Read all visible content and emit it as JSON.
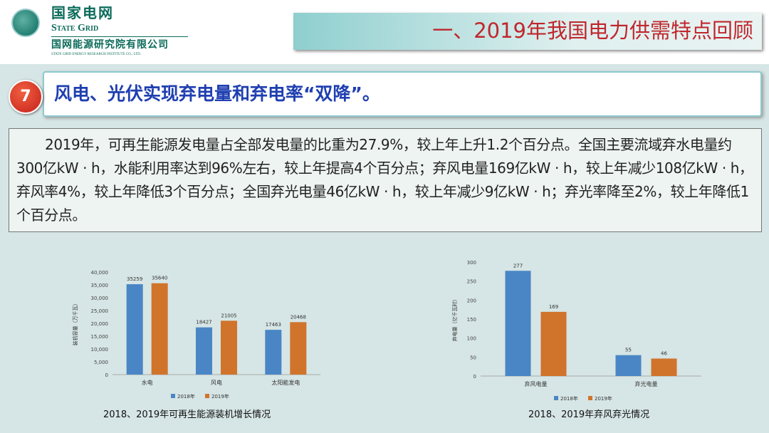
{
  "header": {
    "logo_cn": "国家电网",
    "logo_en": "State Grid",
    "org_cn": "国网能源研究院有限公司",
    "org_en": "STATE GRID ENERGY RESEARCH INSTITUTE CO., LTD.",
    "title": "一、2019年我国电力供需特点回顾"
  },
  "section": {
    "number": "7",
    "title": "风电、光伏实现弃电量和弃电率“双降”。"
  },
  "paragraph": "2019年，可再生能源发电量占全部发电量的比重为27.9%，较上年上升1.2个百分点。全国主要流域弃水电量约300亿kW · h，水能利用率达到96%左右，较上年提高4个百分点；弃风电量169亿kW · h，较上年减少108亿kW · h，弃风率4%，较上年降低3个百分点；全国弃光电量46亿kW · h，较上年减少9亿kW · h；弃光率降至2%，较上年降低1个百分点。",
  "colors": {
    "series_2018": "#4a86c5",
    "series_2019": "#d0742c",
    "title_red": "#c0272d",
    "section_blue": "#1f3fb0"
  },
  "chart_data": [
    {
      "type": "bar",
      "caption": "2018、2019年可再生能源装机增长情况",
      "ylabel": "装机容量（万千瓦）",
      "ylim": [
        0,
        40000
      ],
      "yticks": [
        "0",
        "5,000",
        "10,000",
        "15,000",
        "20,000",
        "25,000",
        "30,000",
        "35,000",
        "40,000"
      ],
      "categories": [
        "水电",
        "风电",
        "太阳能发电"
      ],
      "series": [
        {
          "name": "2018年",
          "values": [
            35259,
            18427,
            17463
          ]
        },
        {
          "name": "2019年",
          "values": [
            35640,
            21005,
            20468
          ]
        }
      ],
      "legend": "bottom"
    },
    {
      "type": "bar",
      "caption": "2018、2019年弃风弃光情况",
      "ylabel": "弃电量（亿千瓦时）",
      "ylim": [
        0,
        300
      ],
      "yticks": [
        "0",
        "50",
        "100",
        "150",
        "200",
        "250",
        "300"
      ],
      "categories": [
        "弃风电量",
        "弃光电量"
      ],
      "series": [
        {
          "name": "2018年",
          "values": [
            277,
            55
          ]
        },
        {
          "name": "2019年",
          "values": [
            169,
            46
          ]
        }
      ],
      "legend": "bottom"
    }
  ]
}
